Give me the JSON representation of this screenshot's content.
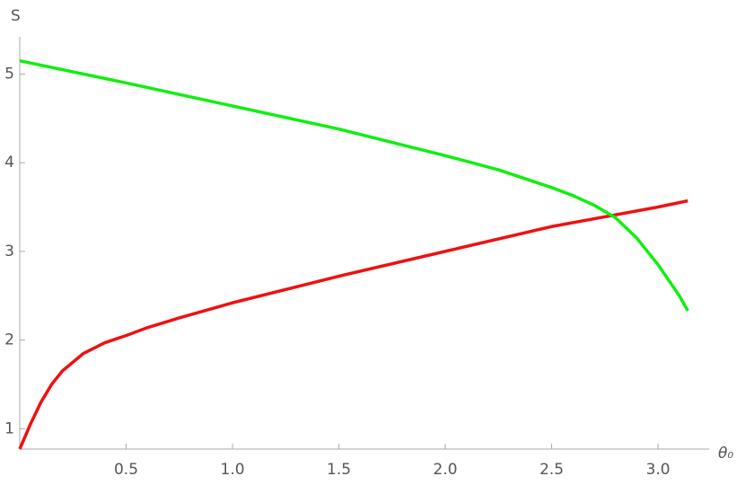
{
  "chart_data": {
    "type": "line",
    "y_label": "S",
    "x_label": "θ₀",
    "xlim": [
      0,
      3.24
    ],
    "ylim": [
      0.77,
      5.42
    ],
    "xticks": [
      0.5,
      {
        "value": 1,
        "label": "1.0"
      },
      1.5,
      {
        "value": 2,
        "label": "2.0"
      },
      2.5,
      {
        "value": 3,
        "label": "3.0"
      }
    ],
    "yticks": [
      1,
      2,
      3,
      4,
      5
    ],
    "grid": false,
    "series": [
      {
        "color": "#ee1111",
        "x": [
          0,
          0.05,
          0.1,
          0.15,
          0.2,
          0.3,
          0.4,
          0.5,
          0.6,
          0.75,
          1.0,
          1.5,
          2.0,
          2.5,
          3.0,
          3.14
        ],
        "values": [
          0.77,
          1.05,
          1.3,
          1.5,
          1.65,
          1.85,
          1.97,
          2.05,
          2.14,
          2.25,
          2.42,
          2.72,
          3.0,
          3.28,
          3.5,
          3.57
        ]
      },
      {
        "color": "#11ee11",
        "x": [
          0,
          0.5,
          1.0,
          1.5,
          2.0,
          2.25,
          2.5,
          2.6,
          2.7,
          2.8,
          2.9,
          3.0,
          3.1,
          3.14
        ],
        "values": [
          5.15,
          4.9,
          4.64,
          4.38,
          4.08,
          3.92,
          3.72,
          3.63,
          3.52,
          3.38,
          3.15,
          2.85,
          2.5,
          2.33
        ]
      }
    ]
  }
}
